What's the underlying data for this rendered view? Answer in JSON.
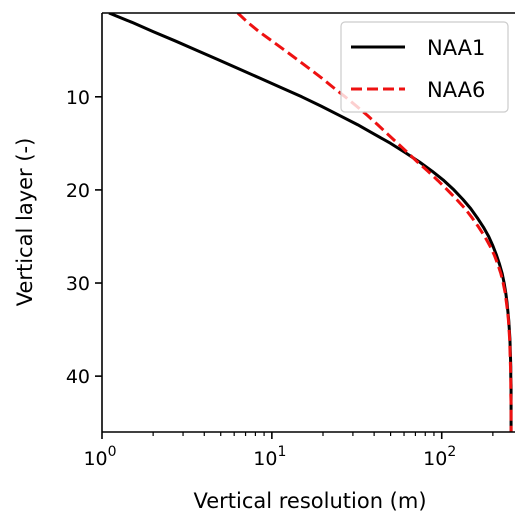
{
  "chart_data": {
    "type": "line",
    "xlabel": "Vertical resolution (m)",
    "ylabel": "Vertical layer (-)",
    "x_scale": "log",
    "xlim": [
      1,
      270
    ],
    "ylim": [
      46,
      1
    ],
    "y_inverted": true,
    "x_ticks": [
      {
        "value": 1,
        "base": "10",
        "exp": "0"
      },
      {
        "value": 10,
        "base": "10",
        "exp": "1"
      },
      {
        "value": 100,
        "base": "10",
        "exp": "2"
      }
    ],
    "y_ticks": [
      10,
      20,
      30,
      40
    ],
    "legend_position": "top-right",
    "grid": false,
    "series": [
      {
        "name": "NAA1",
        "color": "#000000",
        "style": "solid",
        "points": [
          [
            1.1,
            1
          ],
          [
            1.5,
            2
          ],
          [
            2,
            3
          ],
          [
            2.7,
            4
          ],
          [
            3.6,
            5
          ],
          [
            4.8,
            6
          ],
          [
            6.4,
            7
          ],
          [
            8.5,
            8
          ],
          [
            11.3,
            9
          ],
          [
            15,
            10
          ],
          [
            19.5,
            11
          ],
          [
            25,
            12
          ],
          [
            32,
            13
          ],
          [
            40,
            14
          ],
          [
            50,
            15
          ],
          [
            61,
            16
          ],
          [
            74,
            17
          ],
          [
            88,
            18
          ],
          [
            103,
            19
          ],
          [
            118,
            20
          ],
          [
            133,
            21
          ],
          [
            148,
            22
          ],
          [
            162,
            23
          ],
          [
            176,
            24
          ],
          [
            189,
            25
          ],
          [
            200,
            26
          ],
          [
            210,
            27
          ],
          [
            219,
            28
          ],
          [
            227,
            29
          ],
          [
            233,
            30
          ],
          [
            238,
            31
          ],
          [
            242,
            32
          ],
          [
            245,
            33
          ],
          [
            248,
            34
          ],
          [
            250,
            35
          ],
          [
            252,
            36
          ],
          [
            253,
            37
          ],
          [
            254,
            38
          ],
          [
            255,
            39
          ],
          [
            255,
            40
          ],
          [
            256,
            41
          ],
          [
            256,
            42
          ],
          [
            256,
            43
          ],
          [
            256,
            44
          ],
          [
            256,
            45
          ],
          [
            256,
            46
          ]
        ]
      },
      {
        "name": "NAA6",
        "color": "#ee1111",
        "style": "dashed",
        "points": [
          [
            6.3,
            1
          ],
          [
            7.2,
            2
          ],
          [
            8.4,
            3
          ],
          [
            10,
            4
          ],
          [
            11.9,
            5
          ],
          [
            14.1,
            6
          ],
          [
            16.7,
            7
          ],
          [
            19.7,
            8
          ],
          [
            23,
            9
          ],
          [
            27,
            10
          ],
          [
            31.5,
            11
          ],
          [
            36.5,
            12
          ],
          [
            42,
            13
          ],
          [
            48,
            14
          ],
          [
            55,
            15
          ],
          [
            63,
            16
          ],
          [
            72,
            17
          ],
          [
            83,
            18
          ],
          [
            95,
            19
          ],
          [
            108,
            20
          ],
          [
            122,
            21
          ],
          [
            137,
            22
          ],
          [
            151,
            23
          ],
          [
            165,
            24
          ],
          [
            179,
            25
          ],
          [
            192,
            26
          ],
          [
            204,
            27
          ],
          [
            214,
            28
          ],
          [
            223,
            29
          ],
          [
            230,
            30
          ],
          [
            236,
            31
          ],
          [
            240,
            32
          ],
          [
            244,
            33
          ],
          [
            247,
            34
          ],
          [
            249,
            35
          ],
          [
            251,
            36
          ],
          [
            252,
            37
          ],
          [
            253,
            38
          ],
          [
            254,
            39
          ],
          [
            255,
            40
          ],
          [
            255,
            41
          ],
          [
            255,
            42
          ],
          [
            256,
            43
          ],
          [
            256,
            44
          ],
          [
            256,
            45
          ],
          [
            256,
            46
          ]
        ]
      }
    ]
  }
}
